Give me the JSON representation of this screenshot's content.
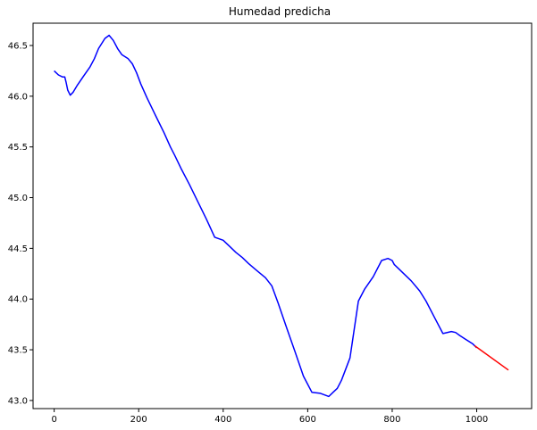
{
  "chart_data": {
    "type": "line",
    "title": "Humedad predicha",
    "xlabel": "",
    "ylabel": "",
    "xlim": [
      -50,
      1130
    ],
    "ylim": [
      42.92,
      46.72
    ],
    "xticks": [
      0,
      200,
      400,
      600,
      800,
      1000
    ],
    "yticks": [
      43.0,
      43.5,
      44.0,
      44.5,
      45.0,
      45.5,
      46.0,
      46.5
    ],
    "xtick_labels": [
      "0",
      "200",
      "400",
      "600",
      "800",
      "1000"
    ],
    "ytick_labels": [
      "43.0",
      "43.5",
      "44.0",
      "44.5",
      "45.0",
      "45.5",
      "46.0",
      "46.5"
    ],
    "grid": false,
    "series": [
      {
        "color": "#0000ff",
        "x": [
          0,
          10,
          20,
          25,
          28,
          32,
          38,
          45,
          55,
          70,
          85,
          95,
          105,
          120,
          130,
          140,
          150,
          160,
          175,
          185,
          195,
          205,
          220,
          240,
          260,
          275,
          285,
          300,
          320,
          340,
          360,
          380,
          400,
          415,
          430,
          445,
          460,
          480,
          500,
          515,
          530,
          550,
          570,
          590,
          610,
          630,
          650,
          660,
          670,
          680,
          700,
          720,
          735,
          755,
          775,
          790,
          800,
          805,
          815,
          830,
          845,
          865,
          880,
          900,
          920,
          940,
          950,
          960,
          975,
          990,
          1000
        ],
        "y": [
          46.25,
          46.21,
          46.19,
          46.19,
          46.14,
          46.06,
          46.01,
          46.04,
          46.11,
          46.2,
          46.29,
          46.37,
          46.47,
          46.57,
          46.6,
          46.55,
          46.47,
          46.41,
          46.37,
          46.32,
          46.23,
          46.12,
          45.98,
          45.81,
          45.64,
          45.5,
          45.42,
          45.29,
          45.13,
          44.96,
          44.79,
          44.61,
          44.58,
          44.52,
          44.46,
          44.41,
          44.35,
          44.28,
          44.21,
          44.13,
          43.96,
          43.72,
          43.48,
          43.24,
          43.08,
          43.07,
          43.04,
          43.08,
          43.12,
          43.2,
          43.42,
          43.98,
          44.1,
          44.22,
          44.38,
          44.4,
          44.38,
          44.34,
          44.3,
          44.24,
          44.18,
          44.08,
          43.98,
          43.82,
          43.66,
          43.68,
          43.67,
          43.64,
          43.6,
          43.56,
          43.52
        ]
      },
      {
        "color": "#ff0000",
        "x": [
          995,
          1075
        ],
        "y": [
          43.54,
          43.3
        ]
      }
    ]
  }
}
